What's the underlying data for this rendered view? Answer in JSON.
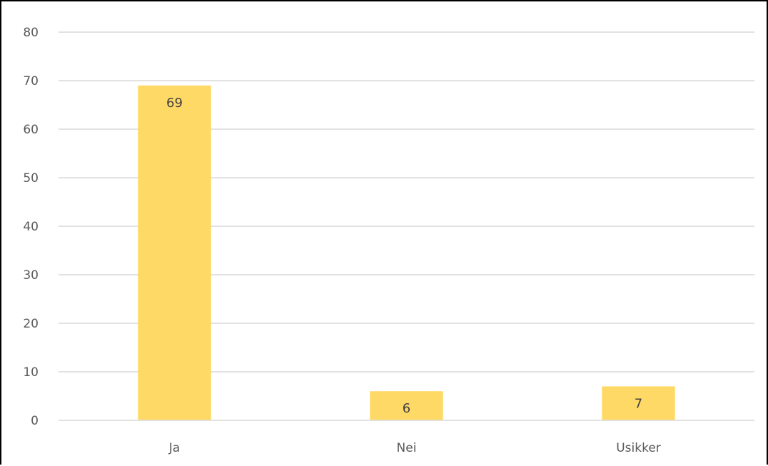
{
  "chart_data": {
    "type": "bar",
    "title": "",
    "xlabel": "",
    "ylabel": "",
    "categories": [
      "Ja",
      "Nei",
      "Usikker"
    ],
    "values": [
      69,
      6,
      7
    ],
    "ylim": [
      0,
      80
    ],
    "yticks": [
      0,
      10,
      20,
      30,
      40,
      50,
      60,
      70,
      80
    ],
    "grid": true,
    "legend": "none",
    "data_labels": true,
    "bar_color": "#FFD966",
    "gridline_color": "#D9D9D9",
    "axis_color": "#D9D9D9",
    "text_color": "#595959"
  }
}
